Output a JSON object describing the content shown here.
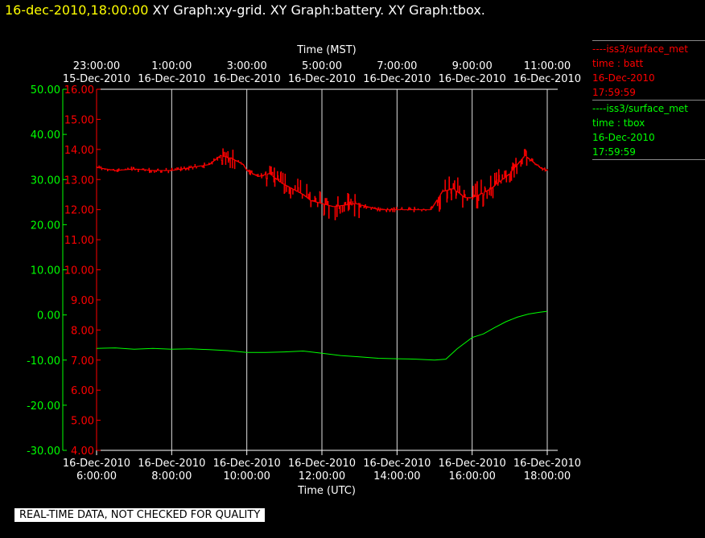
{
  "header": {
    "timestamp": "16-dec-2010,18:00:00",
    "titles": [
      "XY Graph:xy-grid.",
      "XY Graph:battery.",
      "XY Graph:tbox."
    ]
  },
  "legend": [
    {
      "prefix": "----",
      "station": "iss3/surface_met",
      "var_label": "time : batt",
      "date": "16-Dec-2010",
      "time": "17:59:59",
      "color": "#ff0000"
    },
    {
      "prefix": "----",
      "station": "iss3/surface_met",
      "var_label": "time : tbox",
      "date": "16-Dec-2010",
      "time": "17:59:59",
      "color": "#00ff00"
    }
  ],
  "quality_note": "REAL-TIME DATA, NOT CHECKED FOR QUALITY",
  "chart_data": {
    "type": "line",
    "top_axis_label": "Time (MST)",
    "bottom_axis_label": "Time (UTC)",
    "x_range_utc": [
      "2010-12-16 06:00",
      "2010-12-16 18:00"
    ],
    "top_ticks": [
      {
        "time": "23:00:00",
        "date": "15-Dec-2010"
      },
      {
        "time": "1:00:00",
        "date": "16-Dec-2010"
      },
      {
        "time": "3:00:00",
        "date": "16-Dec-2010"
      },
      {
        "time": "5:00:00",
        "date": "16-Dec-2010"
      },
      {
        "time": "7:00:00",
        "date": "16-Dec-2010"
      },
      {
        "time": "9:00:00",
        "date": "16-Dec-2010"
      },
      {
        "time": "11:00:00",
        "date": "16-Dec-2010"
      }
    ],
    "bottom_ticks": [
      {
        "date": "16-Dec-2010",
        "time": "6:00:00"
      },
      {
        "date": "16-Dec-2010",
        "time": "8:00:00"
      },
      {
        "date": "16-Dec-2010",
        "time": "10:00:00"
      },
      {
        "date": "16-Dec-2010",
        "time": "12:00:00"
      },
      {
        "date": "16-Dec-2010",
        "time": "14:00:00"
      },
      {
        "date": "16-Dec-2010",
        "time": "16:00:00"
      },
      {
        "date": "16-Dec-2010",
        "time": "18:00:00"
      }
    ],
    "y_axes": [
      {
        "id": "tbox",
        "ylim": [
          -30,
          50
        ],
        "ticks": [
          "50.00",
          "40.00",
          "30.00",
          "20.00",
          "10.00",
          "0.00",
          "-10.00",
          "-20.00",
          "-30.00"
        ],
        "color": "#00ff00"
      },
      {
        "id": "batt",
        "ylim": [
          4,
          16
        ],
        "ticks": [
          "16.00",
          "15.00",
          "14.00",
          "13.00",
          "12.00",
          "11.00",
          "10.00",
          "9.00",
          "8.00",
          "7.00",
          "6.00",
          "5.00",
          "4.00"
        ],
        "color": "#ff0000"
      }
    ],
    "grid": "vertical",
    "series": [
      {
        "id": "batt",
        "axis": "batt",
        "color": "#ff0000",
        "hours_utc": [
          6.0,
          6.5,
          7.0,
          7.5,
          8.0,
          8.5,
          9.0,
          9.3,
          9.6,
          9.9,
          10.0,
          10.3,
          10.6,
          10.9,
          11.2,
          11.5,
          11.7,
          12.0,
          12.3,
          12.6,
          12.9,
          13.2,
          13.5,
          13.8,
          14.0,
          14.3,
          14.6,
          14.9,
          15.0,
          15.2,
          15.5,
          15.8,
          16.0,
          16.2,
          16.5,
          16.8,
          17.0,
          17.2,
          17.4,
          17.6,
          17.8,
          18.0
        ],
        "values": [
          13.4,
          13.3,
          13.35,
          13.3,
          13.3,
          13.4,
          13.5,
          13.8,
          13.7,
          13.5,
          13.3,
          13.1,
          13.2,
          12.9,
          12.7,
          12.5,
          12.3,
          12.2,
          12.1,
          12.15,
          12.2,
          12.1,
          12.0,
          12.0,
          12.0,
          12.0,
          12.0,
          12.0,
          12.2,
          12.6,
          12.7,
          12.4,
          12.4,
          12.5,
          12.7,
          13.0,
          13.2,
          13.5,
          13.8,
          13.6,
          13.4,
          13.3
        ]
      },
      {
        "id": "tbox",
        "axis": "tbox",
        "color": "#00ff00",
        "hours_utc": [
          6.0,
          6.5,
          7.0,
          7.5,
          8.0,
          8.5,
          9.0,
          9.5,
          10.0,
          10.5,
          11.0,
          11.5,
          12.0,
          12.5,
          13.0,
          13.5,
          14.0,
          14.5,
          15.0,
          15.3,
          15.6,
          16.0,
          16.3,
          16.6,
          16.9,
          17.2,
          17.5,
          17.8,
          18.0
        ],
        "values": [
          -7.4,
          -7.3,
          -7.6,
          -7.4,
          -7.6,
          -7.5,
          -7.7,
          -7.9,
          -8.3,
          -8.3,
          -8.2,
          -8.0,
          -8.5,
          -9.0,
          -9.3,
          -9.6,
          -9.7,
          -9.8,
          -10.0,
          -9.8,
          -7.5,
          -5.0,
          -4.2,
          -2.8,
          -1.5,
          -0.5,
          0.2,
          0.6,
          0.8
        ]
      }
    ]
  }
}
